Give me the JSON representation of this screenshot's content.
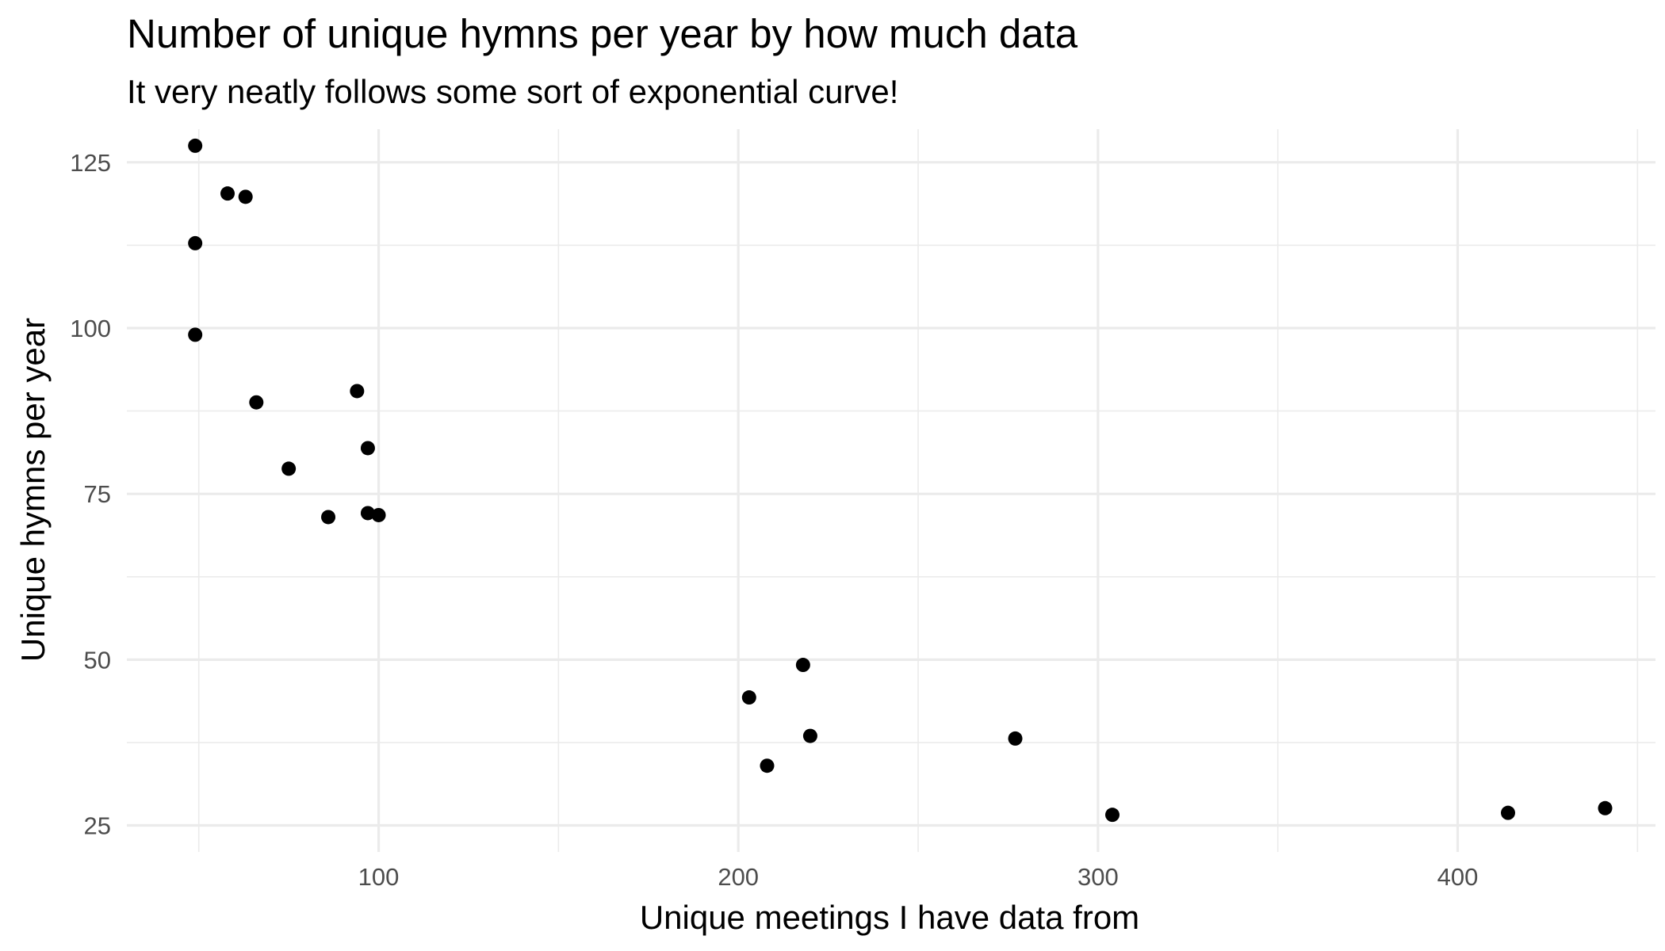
{
  "chart_data": {
    "type": "scatter",
    "title": "Number of unique hymns per year by how much data",
    "subtitle": "It very neatly follows some sort of exponential curve!",
    "xlabel": "Unique meetings I have data from",
    "ylabel": "Unique hymns per year",
    "xlim": [
      30,
      455
    ],
    "ylim": [
      21,
      130
    ],
    "x_ticks": [
      100,
      200,
      300,
      400
    ],
    "x_minor_ticks": [
      50,
      150,
      250,
      350,
      450
    ],
    "y_ticks": [
      25,
      50,
      75,
      100,
      125
    ],
    "y_minor_ticks": [
      37.5,
      62.5,
      87.5,
      112.5
    ],
    "x_tick_labels": [
      "100",
      "200",
      "300",
      "400"
    ],
    "y_tick_labels": [
      "25",
      "50",
      "75",
      "100",
      "125"
    ],
    "grid": true,
    "legend": "none",
    "point_color": "#000000",
    "grid_color": "#ebebeb",
    "points": [
      {
        "x": 49,
        "y": 127.5
      },
      {
        "x": 58,
        "y": 120.3
      },
      {
        "x": 63,
        "y": 119.8
      },
      {
        "x": 49,
        "y": 112.8
      },
      {
        "x": 49,
        "y": 99.0
      },
      {
        "x": 66,
        "y": 88.8
      },
      {
        "x": 94,
        "y": 90.5
      },
      {
        "x": 97,
        "y": 81.9
      },
      {
        "x": 75,
        "y": 78.8
      },
      {
        "x": 86,
        "y": 71.5
      },
      {
        "x": 97,
        "y": 72.1
      },
      {
        "x": 100,
        "y": 71.8
      },
      {
        "x": 218,
        "y": 49.2
      },
      {
        "x": 203,
        "y": 44.3
      },
      {
        "x": 220,
        "y": 38.5
      },
      {
        "x": 208,
        "y": 34.0
      },
      {
        "x": 277,
        "y": 38.1
      },
      {
        "x": 304,
        "y": 26.6
      },
      {
        "x": 414,
        "y": 26.9
      },
      {
        "x": 441,
        "y": 27.6
      }
    ]
  }
}
